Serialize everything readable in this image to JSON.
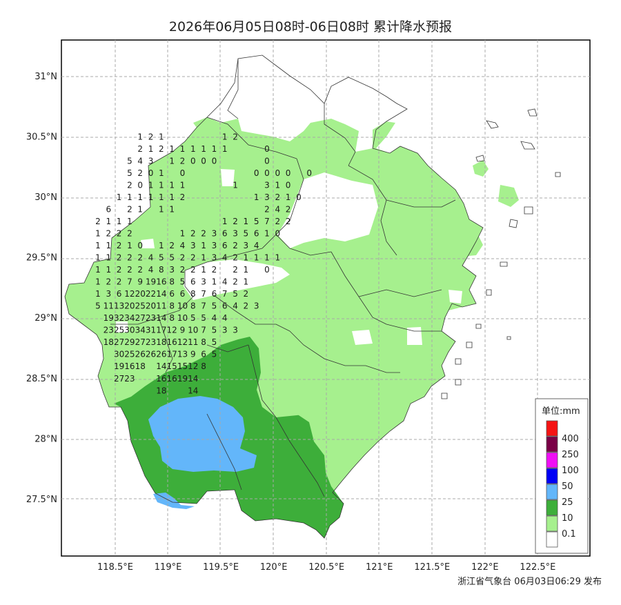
{
  "title": "2026年06月05日08时-06日08时 累计降水预报",
  "footer": "浙江省气象台 06月03日06:29 发布",
  "colors": {
    "c01": "#a6f08e",
    "c10": "#3dae3a",
    "c25": "#63b6fa",
    "c50": "#0000f5",
    "c100": "#f00ff5",
    "c250": "#7a0046",
    "c400": "#f51414",
    "c0": "#ffffff"
  },
  "legend": {
    "title": "单位:mm",
    "items": [
      {
        "label": "400",
        "color": "#f51414"
      },
      {
        "label": "250",
        "color": "#7a0046"
      },
      {
        "label": "100",
        "color": "#f00ff5"
      },
      {
        "label": "50",
        "color": "#0000f5"
      },
      {
        "label": "25",
        "color": "#63b6fa"
      },
      {
        "label": "10",
        "color": "#3dae3a"
      },
      {
        "label": "0.1",
        "color": "#a6f08e"
      },
      {
        "label": "",
        "color": "#ffffff"
      }
    ]
  },
  "axes": {
    "lat_ticks": [
      "31°N",
      "30.5°N",
      "30°N",
      "29.5°N",
      "29°N",
      "28.5°N",
      "28°N",
      "27.5°N"
    ],
    "lon_ticks": [
      "118.5°E",
      "119°E",
      "119.5°E",
      "120°E",
      "120.5°E",
      "121°E",
      "121.5°E",
      "122°E",
      "122.5°E"
    ]
  },
  "grid_values": {
    "lon_start": 118.5,
    "lat_start": 30.5,
    "step": 0.1,
    "rows": [
      [
        "",
        "",
        "",
        "",
        "1",
        "2",
        "1",
        "",
        "",
        "",
        "",
        "",
        "1",
        "2",
        "",
        "",
        "",
        "",
        "",
        "",
        "",
        "",
        "",
        "",
        "",
        ""
      ],
      [
        "",
        "",
        "",
        "",
        "2",
        "1",
        "2",
        "1",
        "1",
        "1",
        "1",
        "1",
        "1",
        "",
        "",
        "",
        "0",
        "",
        "",
        "",
        "",
        "",
        "",
        "",
        "",
        ""
      ],
      [
        "",
        "",
        "",
        "5",
        "4",
        "3",
        "",
        "1",
        "2",
        "0",
        "0",
        "0",
        "",
        "",
        "",
        "",
        "0",
        "",
        "",
        "",
        "",
        "",
        "",
        "",
        "",
        ""
      ],
      [
        "",
        "",
        "",
        "5",
        "2",
        "0",
        "1",
        "",
        "0",
        "",
        "",
        "",
        "",
        "",
        "",
        "0",
        "0",
        "0",
        "0",
        "",
        "0",
        "",
        "",
        "",
        "",
        ""
      ],
      [
        "",
        "",
        "",
        "2",
        "0",
        "1",
        "1",
        "1",
        "1",
        "",
        "",
        "",
        "",
        "1",
        "",
        "",
        "3",
        "1",
        "0",
        "",
        "",
        "",
        "",
        "",
        "",
        ""
      ],
      [
        "",
        "",
        "1",
        "1",
        "1",
        "1",
        "1",
        "1",
        "2",
        "",
        "",
        "",
        "",
        "",
        "",
        "1",
        "3",
        "2",
        "1",
        "0",
        "",
        "",
        "",
        "",
        "",
        ""
      ],
      [
        "",
        "6",
        "",
        "2",
        "1",
        "",
        "1",
        "1",
        "",
        "",
        "",
        "",
        "",
        "",
        "",
        "",
        "2",
        "4",
        "2",
        "",
        "",
        "",
        "",
        "",
        "",
        ""
      ],
      [
        "2",
        "1",
        "1",
        "1",
        "",
        "",
        "",
        "",
        "",
        "",
        "",
        "",
        "1",
        "2",
        "1",
        "5",
        "7",
        "2",
        "2",
        "",
        "",
        "",
        "",
        "",
        "",
        ""
      ],
      [
        "1",
        "2",
        "2",
        "2",
        "",
        "",
        "",
        "",
        "1",
        "2",
        "2",
        "3",
        "6",
        "3",
        "5",
        "6",
        "1",
        "0",
        "",
        "",
        "",
        "",
        "",
        "",
        "",
        ""
      ],
      [
        "1",
        "1",
        "2",
        "1",
        "0",
        "",
        "1",
        "2",
        "4",
        "3",
        "1",
        "3",
        "6",
        "2",
        "3",
        "4",
        "",
        "",
        "",
        "",
        "",
        "",
        "",
        "",
        "",
        ""
      ],
      [
        "1",
        "1",
        "2",
        "2",
        "2",
        "4",
        "5",
        "5",
        "2",
        "2",
        "1",
        "3",
        "4",
        "2",
        "1",
        "1",
        "1",
        "1",
        "",
        "",
        "",
        "",
        "",
        "",
        "",
        ""
      ],
      [
        "1",
        "1",
        "2",
        "2",
        "2",
        "4",
        "8",
        "3",
        "2",
        "2",
        "1",
        "2",
        "",
        "2",
        "1",
        "",
        "0",
        "",
        "",
        "",
        "",
        "",
        "",
        "",
        "",
        ""
      ],
      [
        "1",
        "2",
        "2",
        "7",
        "9",
        "19",
        "16",
        "8",
        "5",
        "6",
        "3",
        "1",
        "4",
        "2",
        "1",
        "",
        "",
        "",
        "",
        "",
        "",
        "",
        "",
        "",
        "",
        ""
      ],
      [
        "1",
        "3",
        "6",
        "12",
        "20",
        "22",
        "14",
        "6",
        "6",
        "8",
        "7",
        "6",
        "7",
        "5",
        "2",
        "",
        "",
        "",
        "",
        "",
        "",
        "",
        "",
        "",
        "",
        ""
      ],
      [
        "5",
        "11",
        "13",
        "20",
        "25",
        "20",
        "11",
        "8",
        "10",
        "8",
        "7",
        "5",
        "6",
        "4",
        "2",
        "3",
        "",
        "",
        "",
        "",
        "",
        "",
        "",
        "",
        "",
        ""
      ],
      [
        "",
        "19",
        "32",
        "34",
        "27",
        "23",
        "14",
        "8",
        "10",
        "5",
        "5",
        "4",
        "4",
        "",
        "",
        "",
        "",
        "",
        "",
        "",
        "",
        "",
        "",
        "",
        "",
        ""
      ],
      [
        "",
        "23",
        "25",
        "30",
        "34",
        "31",
        "17",
        "12",
        "9",
        "10",
        "7",
        "5",
        "3",
        "3",
        "",
        "",
        "",
        "",
        "",
        "",
        "",
        "",
        "",
        "",
        "",
        ""
      ],
      [
        "",
        "18",
        "27",
        "29",
        "27",
        "23",
        "18",
        "16",
        "12",
        "11",
        "8",
        "5",
        "",
        "",
        "",
        "",
        "",
        "",
        "",
        "",
        "",
        "",
        "",
        "",
        "",
        ""
      ],
      [
        "",
        "",
        "30",
        "25",
        "26",
        "26",
        "26",
        "17",
        "13",
        "9",
        "6",
        "5",
        "",
        "",
        "",
        "",
        "",
        "",
        "",
        "",
        "",
        "",
        "",
        "",
        "",
        ""
      ],
      [
        "",
        "",
        "19",
        "16",
        "18",
        "",
        "14",
        "15",
        "15",
        "12",
        "8",
        "",
        "",
        "",
        "",
        "",
        "",
        "",
        "",
        "",
        "",
        "",
        "",
        "",
        "",
        ""
      ],
      [
        "",
        "",
        "27",
        "23",
        "",
        "",
        "16",
        "16",
        "19",
        "14",
        "",
        "",
        "",
        "",
        "",
        "",
        "",
        "",
        "",
        "",
        "",
        "",
        "",
        "",
        "",
        ""
      ],
      [
        "",
        "",
        "",
        "",
        "",
        "",
        "18",
        "",
        "",
        "14",
        "",
        "",
        "",
        "",
        "",
        "",
        "",
        "",
        "",
        "",
        "",
        "",
        "",
        "",
        "",
        ""
      ]
    ]
  }
}
